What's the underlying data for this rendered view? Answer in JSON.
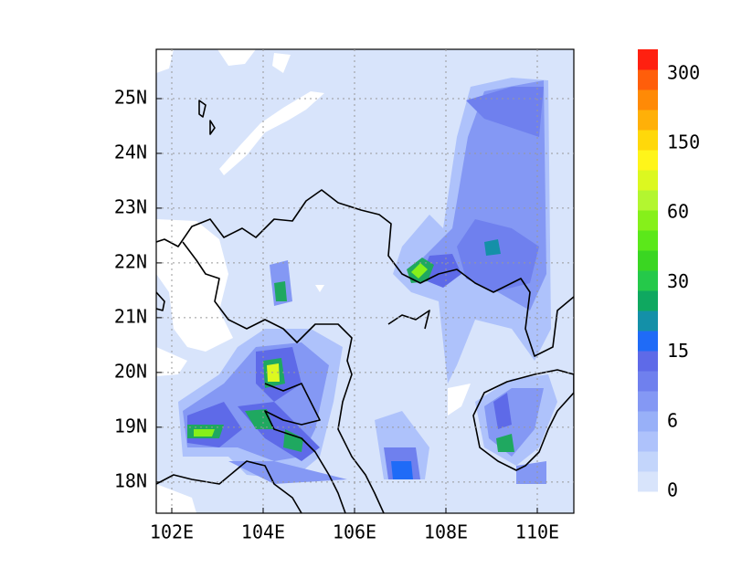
{
  "map": {
    "xlim": [
      101.66,
      110.8
    ],
    "ylim": [
      17.43,
      25.9
    ],
    "xticks": [
      {
        "value": 102,
        "label": "102E"
      },
      {
        "value": 104,
        "label": "104E"
      },
      {
        "value": 106,
        "label": "106E"
      },
      {
        "value": 108,
        "label": "108E"
      },
      {
        "value": 110,
        "label": "110E"
      }
    ],
    "yticks": [
      {
        "value": 18,
        "label": "18N"
      },
      {
        "value": 19,
        "label": "19N"
      },
      {
        "value": 20,
        "label": "20N"
      },
      {
        "value": 21,
        "label": "21N"
      },
      {
        "value": 22,
        "label": "22N"
      },
      {
        "value": 23,
        "label": "23N"
      },
      {
        "value": 24,
        "label": "24N"
      },
      {
        "value": 25,
        "label": "25N"
      }
    ],
    "grid": true,
    "colorbar": {
      "colors": [
        "#d8e4fb",
        "#c3d5fb",
        "#aec2fb",
        "#98b0f8",
        "#8498f4",
        "#6f80ee",
        "#5e6ae8",
        "#1f6bf7",
        "#1490a8",
        "#0fa860",
        "#25c94a",
        "#3ad622",
        "#5be81a",
        "#86f01a",
        "#b3f630",
        "#dcf820",
        "#fff51a",
        "#ffd80a",
        "#ffb008",
        "#ff8a06",
        "#ff5e0a",
        "#ff2010"
      ],
      "ticks": [
        0,
        6,
        15,
        30,
        60,
        150,
        300
      ]
    }
  }
}
